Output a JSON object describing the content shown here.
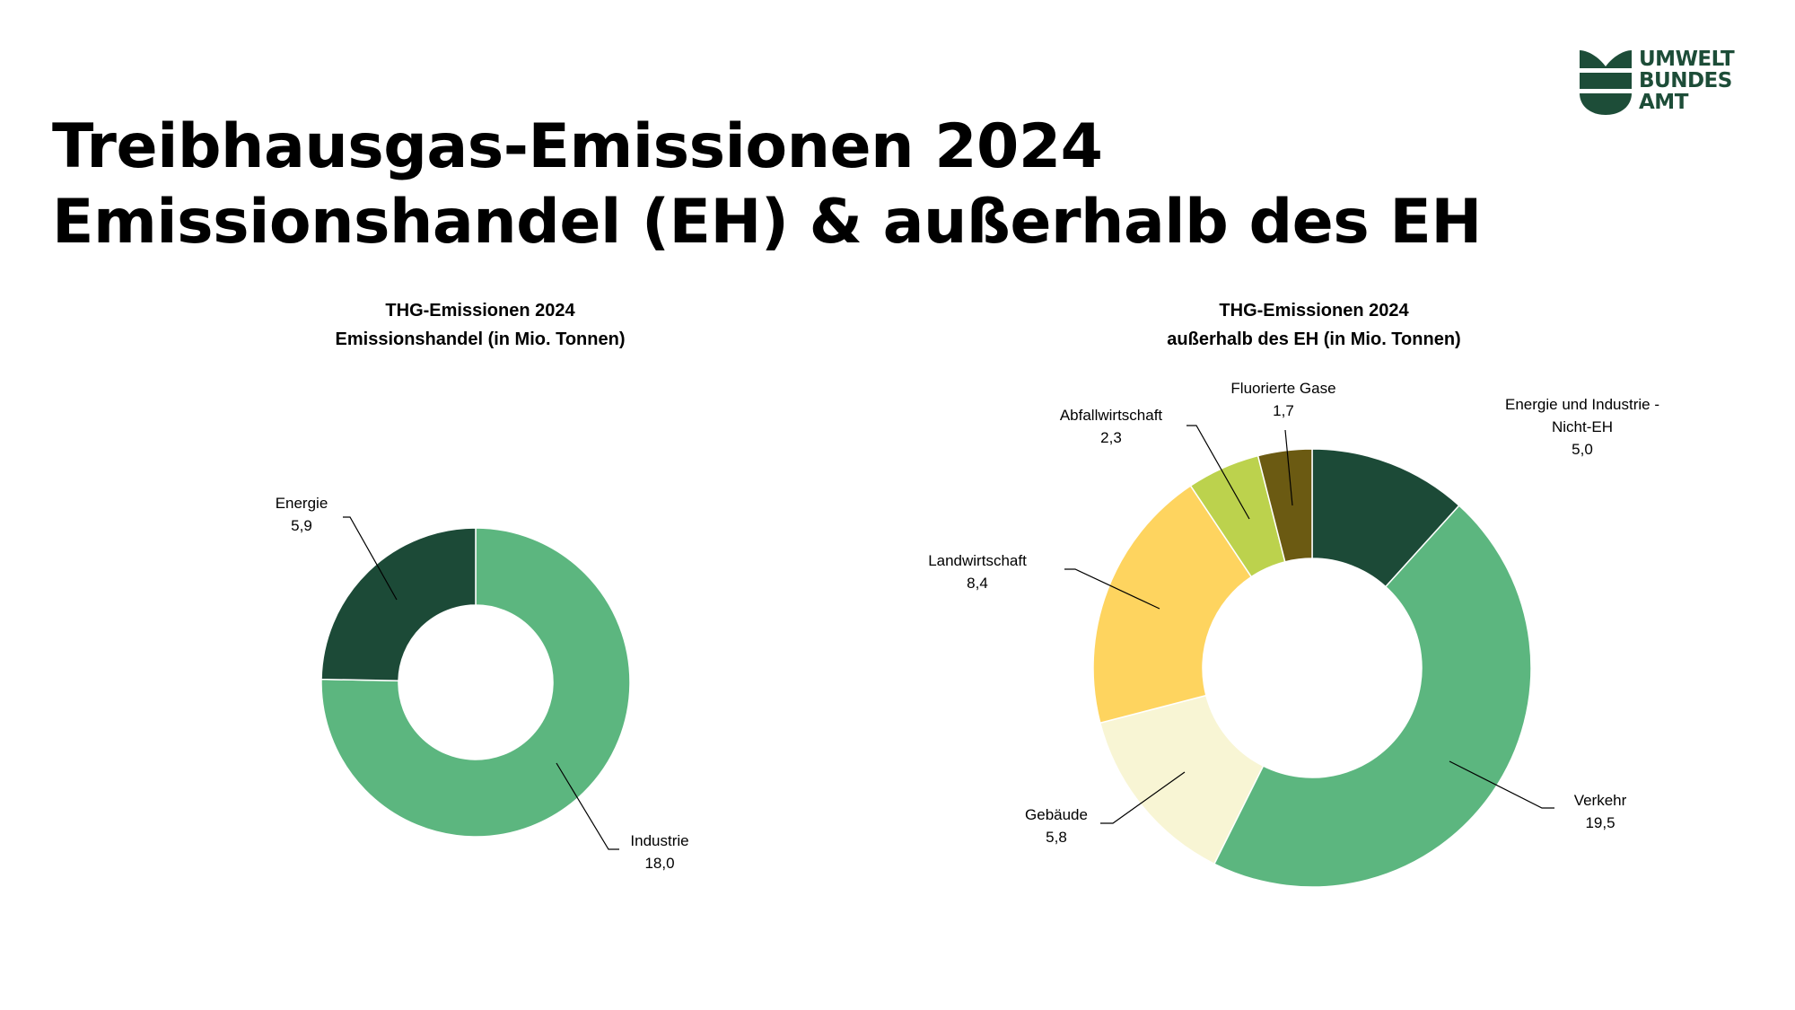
{
  "page": {
    "title_line1": "Treibhausgas-Emissionen 2024",
    "title_line2": "Emissionshandel (EH) & außerhalb des EH"
  },
  "logo": {
    "line1": "UMWELT",
    "line2": "BUNDES",
    "line3": "AMT",
    "color": "#1d4d38"
  },
  "chart_data": [
    {
      "type": "pie",
      "donut": true,
      "title_line1": "THG-Emissionen 2024",
      "title_line2": "Emissionshandel (in Mio. Tonnen)",
      "slices": [
        {
          "label": "Industrie",
          "value_label": "18,0",
          "value": 18.0,
          "color": "#5cb67f"
        },
        {
          "label": "Energie",
          "value_label": "5,9",
          "value": 5.9,
          "color": "#1c4a37"
        }
      ]
    },
    {
      "type": "pie",
      "donut": true,
      "title_line1": "THG-Emissionen 2024",
      "title_line2": "außerhalb des EH (in Mio. Tonnen)",
      "slices": [
        {
          "label": "Energie und Industrie - Nicht-EH",
          "label_lines": [
            "Energie und Industrie -",
            "Nicht-EH"
          ],
          "value_label": "5,0",
          "value": 5.0,
          "color": "#1c4a37"
        },
        {
          "label": "Verkehr",
          "value_label": "19,5",
          "value": 19.5,
          "color": "#5cb67f"
        },
        {
          "label": "Gebäude",
          "value_label": "5,8",
          "value": 5.8,
          "color": "#f8f5d4"
        },
        {
          "label": "Landwirtschaft",
          "value_label": "8,4",
          "value": 8.4,
          "color": "#fed45f"
        },
        {
          "label": "Abfallwirtschaft",
          "value_label": "2,3",
          "value": 2.3,
          "color": "#bcd24d"
        },
        {
          "label": "Fluorierte Gase",
          "value_label": "1,7",
          "value": 1.7,
          "color": "#6b5a12"
        }
      ]
    }
  ]
}
